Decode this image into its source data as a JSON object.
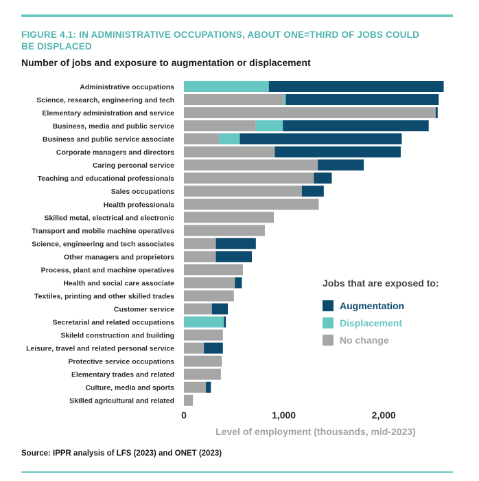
{
  "figure": {
    "title": "FIGURE 4.1: IN ADMINISTRATIVE OCCUPATIONS, ABOUT ONE=THIRD OF JOBS COULD BE DISPLACED",
    "subtitle": "Number of jobs and exposure to augmentation or displacement",
    "source": "Source: IPPR analysis of LFS (2023) and ONET (2023)"
  },
  "legend": {
    "title": "Jobs that are exposed to:",
    "items": [
      {
        "label": "Augmentation",
        "color": "#0c4a6e"
      },
      {
        "label": "Displacement",
        "color": "#66c7c3"
      },
      {
        "label": "No change",
        "color": "#a6a6a6"
      }
    ]
  },
  "chart_data": {
    "type": "bar",
    "orientation": "horizontal",
    "stacked": true,
    "title": "Number of jobs and exposure to augmentation or displacement",
    "xlabel": "Level of employment (thousands, mid-2023)",
    "ylabel": "",
    "xlim": [
      0,
      2650
    ],
    "xticks": [
      0,
      1000,
      2000
    ],
    "xtick_labels": [
      "0",
      "1,000",
      "2,000"
    ],
    "grid": false,
    "legend_position": "right",
    "categories": [
      "Administrative occupations",
      "Science, research, engineering and tech",
      "Elementary administration and service",
      "Business, media and public service",
      "Business and public service associate",
      "Corporate managers and directors",
      "Caring personal service",
      "Teaching and educational professionals",
      "Sales occupations",
      "Health professionals",
      "Skilled metal, electrical and electronic",
      "Transport and mobile machine operatives",
      "Science, engineering and tech associates",
      "Other managers and proprietors",
      "Process, plant and machine operatives",
      "Health and social care associate",
      "Textiles, printing and other skilled trades",
      "Customer service",
      "Secretarial and related occupations",
      "Skileld construction and building",
      "Leisure, travel and related personal service",
      "Protective service occupations",
      "Elementary trades and related",
      "Culture, media and sports",
      "Skilled agricultural and related"
    ],
    "series": [
      {
        "name": "No change",
        "color": "#a6a6a6",
        "values": [
          0,
          1000,
          2520,
          720,
          350,
          910,
          1340,
          1300,
          1180,
          1350,
          900,
          810,
          320,
          320,
          590,
          510,
          500,
          280,
          0,
          390,
          200,
          380,
          370,
          220,
          90
        ]
      },
      {
        "name": "Displacement",
        "color": "#66c7c3",
        "values": [
          850,
          20,
          0,
          270,
          210,
          0,
          0,
          0,
          0,
          0,
          0,
          0,
          0,
          0,
          0,
          0,
          0,
          0,
          400,
          0,
          0,
          0,
          0,
          0,
          0
        ]
      },
      {
        "name": "Augmentation",
        "color": "#0c4a6e",
        "values": [
          1750,
          1530,
          20,
          1460,
          1620,
          1260,
          460,
          180,
          220,
          0,
          0,
          0,
          400,
          360,
          0,
          70,
          0,
          160,
          20,
          0,
          190,
          0,
          0,
          50,
          0
        ]
      }
    ]
  }
}
